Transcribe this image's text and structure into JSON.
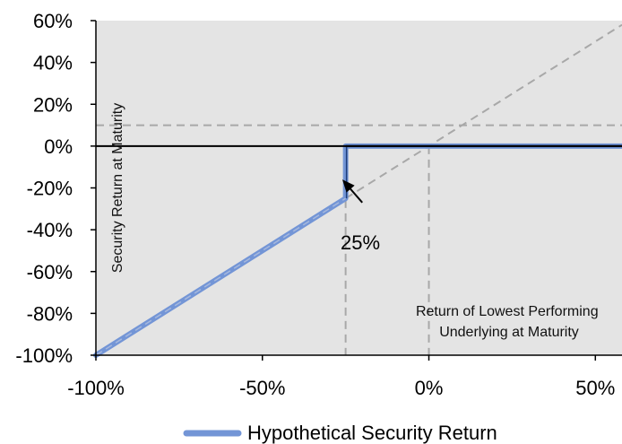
{
  "chart_data": {
    "type": "line",
    "title": "",
    "xlabel": "Return of Lowest Performing Underlying at Maturity",
    "xlabel_lines": [
      "Return of Lowest Performing",
      "Underlying at Maturity"
    ],
    "ylabel": "Security Return at Maturity",
    "xlim": [
      -100,
      58
    ],
    "ylim": [
      -100,
      60
    ],
    "x_ticks": [
      -100,
      -50,
      0,
      50
    ],
    "x_tick_labels": [
      "-100%",
      "-50%",
      "0%",
      "50%"
    ],
    "y_ticks": [
      -100,
      -80,
      -60,
      -40,
      -20,
      0,
      20,
      40,
      60
    ],
    "y_tick_labels": [
      "-100%",
      "-80%",
      "-60%",
      "-40%",
      "-20%",
      "0%",
      "20%",
      "40%",
      "60%"
    ],
    "grid": false,
    "legend_position": "bottom",
    "background_color": "#e4e4e4",
    "series": [
      {
        "name": "Hypothetical Security Return",
        "color": "#7395d6",
        "x": [
          -100,
          -25,
          -25,
          58
        ],
        "y": [
          -100,
          -25,
          0,
          0
        ]
      }
    ],
    "reference_lines": {
      "diagonal": {
        "color": "#a8a8a8",
        "x": [
          -25,
          58
        ],
        "y": [
          -25,
          58
        ]
      },
      "horizontal_dashed_y": 10,
      "vertical_dashed_x": [
        -25,
        0
      ],
      "zero_line_color": "#000000",
      "dark_flat_line_color": "#1f3f7a"
    },
    "callout": {
      "text": "25%",
      "arrow_from": [
        -20,
        -27
      ],
      "arrow_to": [
        -26,
        -16
      ]
    }
  }
}
